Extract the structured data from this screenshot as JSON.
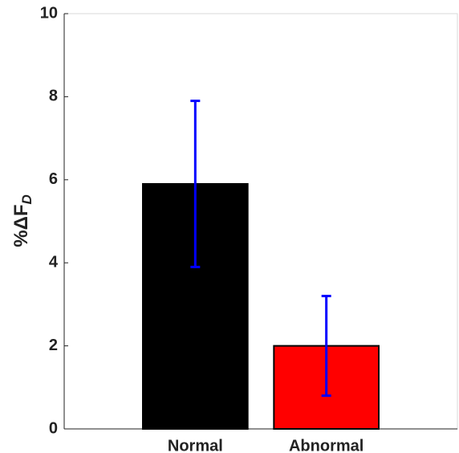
{
  "chart_data": {
    "type": "bar",
    "y_label": "%ΔF",
    "y_label_subscript": "D",
    "categories": [
      "Normal",
      "Abnormal"
    ],
    "values": [
      5.9,
      2.0
    ],
    "errors": [
      2.0,
      1.2
    ],
    "colors": [
      "#000000",
      "#ff0000"
    ],
    "error_color": "#0000ff",
    "ylim": [
      0,
      10
    ],
    "yticks": [
      0,
      2,
      4,
      6,
      8,
      10
    ]
  }
}
